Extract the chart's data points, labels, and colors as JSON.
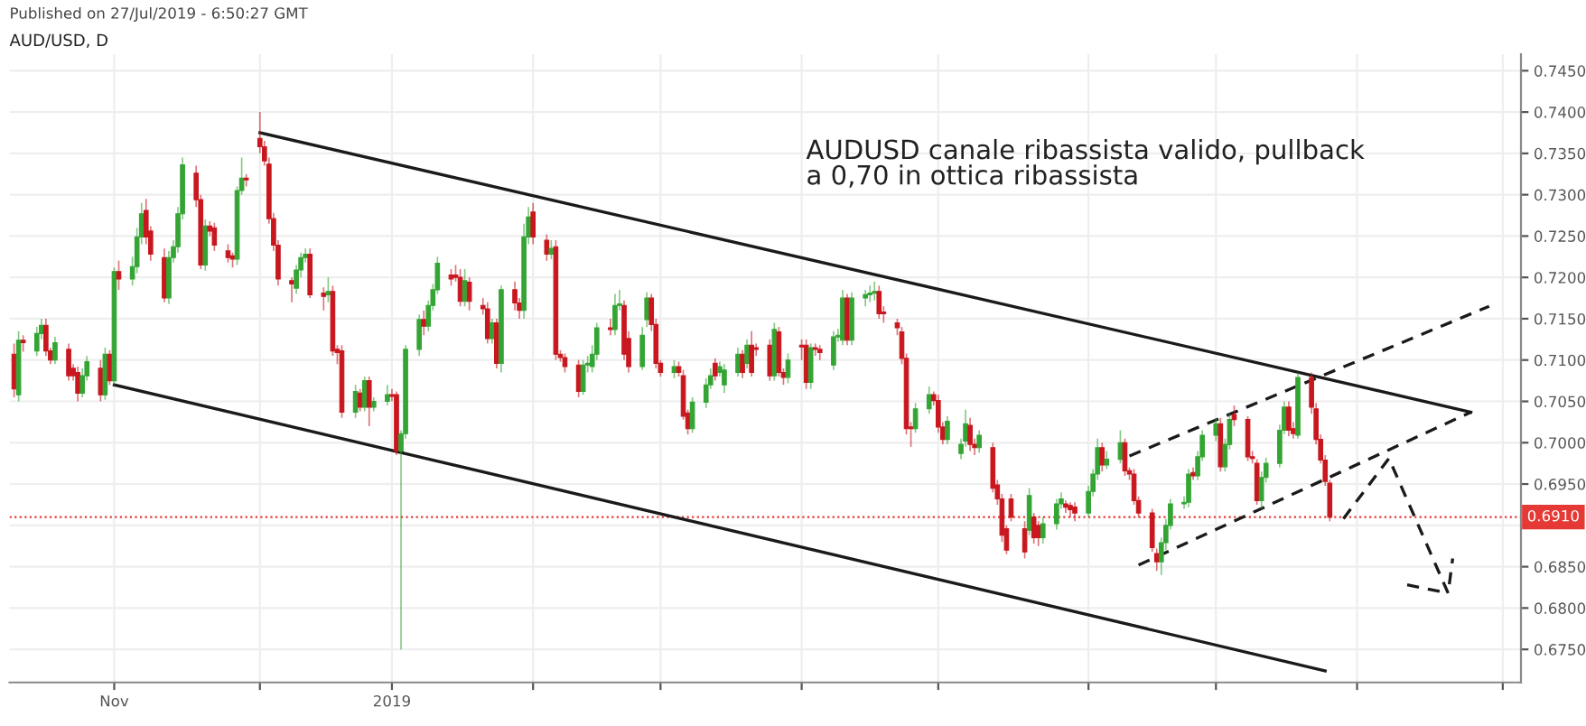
{
  "chart_data": {
    "type": "candlestick",
    "title": "AUD/USD, D",
    "annotations": [
      "Published on 27/Jul/2019 - 6:50:27 GMT",
      "AUDUSD canale ribassista valido, pullback\na 0,70 in ottica ribassista"
    ],
    "x": [
      "2018-10-10",
      "2018-10-11",
      "2018-10-12",
      "2018-10-15",
      "2018-10-16",
      "2018-10-17",
      "2018-10-18",
      "2018-10-19",
      "2018-10-22",
      "2018-10-23",
      "2018-10-24",
      "2018-10-25",
      "2018-10-26",
      "2018-10-29",
      "2018-10-30",
      "2018-10-31",
      "2018-11-01",
      "2018-11-02",
      "2018-11-05",
      "2018-11-06",
      "2018-11-07",
      "2018-11-08",
      "2018-11-09",
      "2018-11-12",
      "2018-11-13",
      "2018-11-14",
      "2018-11-15",
      "2018-11-16",
      "2018-11-19",
      "2018-11-20",
      "2018-11-21",
      "2018-11-22",
      "2018-11-23",
      "2018-11-26",
      "2018-11-27",
      "2018-11-28",
      "2018-11-29",
      "2018-11-30",
      "2018-12-03",
      "2018-12-04",
      "2018-12-05",
      "2018-12-06",
      "2018-12-07",
      "2018-12-10",
      "2018-12-11",
      "2018-12-12",
      "2018-12-13",
      "2018-12-14",
      "2018-12-17",
      "2018-12-18",
      "2018-12-19",
      "2018-12-20",
      "2018-12-21",
      "2018-12-24",
      "2018-12-25",
      "2018-12-26",
      "2018-12-27",
      "2018-12-28",
      "2018-12-31",
      "2019-01-01",
      "2019-01-02",
      "2019-01-03",
      "2019-01-04",
      "2019-01-07",
      "2019-01-08",
      "2019-01-09",
      "2019-01-10",
      "2019-01-11",
      "2019-01-14",
      "2019-01-15",
      "2019-01-16",
      "2019-01-17",
      "2019-01-18",
      "2019-01-21",
      "2019-01-22",
      "2019-01-23",
      "2019-01-24",
      "2019-01-25",
      "2019-01-28",
      "2019-01-29",
      "2019-01-30",
      "2019-01-31",
      "2019-02-01",
      "2019-02-04",
      "2019-02-05",
      "2019-02-06",
      "2019-02-07",
      "2019-02-08",
      "2019-02-11",
      "2019-02-12",
      "2019-02-13",
      "2019-02-14",
      "2019-02-15",
      "2019-02-18",
      "2019-02-19",
      "2019-02-20",
      "2019-02-21",
      "2019-02-22",
      "2019-02-25",
      "2019-02-26",
      "2019-02-27",
      "2019-02-28",
      "2019-03-01",
      "2019-03-04",
      "2019-03-05",
      "2019-03-06",
      "2019-03-07",
      "2019-03-08",
      "2019-03-11",
      "2019-03-12",
      "2019-03-13",
      "2019-03-14",
      "2019-03-15",
      "2019-03-18",
      "2019-03-19",
      "2019-03-20",
      "2019-03-21",
      "2019-03-22",
      "2019-03-25",
      "2019-03-26",
      "2019-03-27",
      "2019-03-28",
      "2019-03-29",
      "2019-04-01",
      "2019-04-02",
      "2019-04-03",
      "2019-04-04",
      "2019-04-05",
      "2019-04-08",
      "2019-04-09",
      "2019-04-10",
      "2019-04-11",
      "2019-04-12",
      "2019-04-15",
      "2019-04-16",
      "2019-04-17",
      "2019-04-18",
      "2019-04-19",
      "2019-04-22",
      "2019-04-23",
      "2019-04-24",
      "2019-04-25",
      "2019-04-26",
      "2019-04-29",
      "2019-04-30",
      "2019-05-01",
      "2019-05-02",
      "2019-05-03",
      "2019-05-06",
      "2019-05-07",
      "2019-05-08",
      "2019-05-09",
      "2019-05-10",
      "2019-05-13",
      "2019-05-14",
      "2019-05-15",
      "2019-05-16",
      "2019-05-17",
      "2019-05-20",
      "2019-05-21",
      "2019-05-22",
      "2019-05-23",
      "2019-05-24",
      "2019-05-27",
      "2019-05-28",
      "2019-05-29",
      "2019-05-30",
      "2019-05-31",
      "2019-06-03",
      "2019-06-04",
      "2019-06-05",
      "2019-06-06",
      "2019-06-07",
      "2019-06-10",
      "2019-06-11",
      "2019-06-12",
      "2019-06-13",
      "2019-06-14",
      "2019-06-17",
      "2019-06-18",
      "2019-06-19",
      "2019-06-20",
      "2019-06-21",
      "2019-06-24",
      "2019-06-25",
      "2019-06-26",
      "2019-06-27",
      "2019-06-28",
      "2019-07-01",
      "2019-07-02",
      "2019-07-03",
      "2019-07-04",
      "2019-07-05",
      "2019-07-08",
      "2019-07-09",
      "2019-07-10",
      "2019-07-11",
      "2019-07-12",
      "2019-07-15",
      "2019-07-16",
      "2019-07-17",
      "2019-07-18",
      "2019-07-19",
      "2019-07-22",
      "2019-07-23",
      "2019-07-24",
      "2019-07-25",
      "2019-07-26"
    ],
    "ohlc": [
      [
        0.7107,
        0.712,
        0.7055,
        0.7065
      ],
      [
        0.7058,
        0.7135,
        0.705,
        0.7124
      ],
      [
        0.7124,
        0.713,
        0.711,
        0.7121
      ],
      [
        0.7111,
        0.714,
        0.7105,
        0.7132
      ],
      [
        0.7132,
        0.715,
        0.7125,
        0.7142
      ],
      [
        0.7142,
        0.715,
        0.7105,
        0.7111
      ],
      [
        0.7111,
        0.7115,
        0.7095,
        0.71
      ],
      [
        0.71,
        0.7128,
        0.7095,
        0.7121
      ],
      [
        0.7113,
        0.712,
        0.7075,
        0.7081
      ],
      [
        0.709,
        0.7095,
        0.7075,
        0.7081
      ],
      [
        0.7085,
        0.7092,
        0.705,
        0.706
      ],
      [
        0.706,
        0.709,
        0.7055,
        0.7081
      ],
      [
        0.7081,
        0.7105,
        0.7075,
        0.7098
      ],
      [
        0.709,
        0.71,
        0.705,
        0.7058
      ],
      [
        0.7058,
        0.7115,
        0.7052,
        0.7107
      ],
      [
        0.7107,
        0.7112,
        0.707,
        0.7075
      ],
      [
        0.7075,
        0.7212,
        0.707,
        0.7207
      ],
      [
        0.7207,
        0.722,
        0.7185,
        0.7198
      ],
      [
        0.7198,
        0.7225,
        0.719,
        0.7213
      ],
      [
        0.7213,
        0.726,
        0.7205,
        0.7249
      ],
      [
        0.7249,
        0.729,
        0.724,
        0.7277
      ],
      [
        0.7281,
        0.7295,
        0.724,
        0.7249
      ],
      [
        0.7256,
        0.7262,
        0.722,
        0.7228
      ],
      [
        0.7224,
        0.7235,
        0.717,
        0.7175
      ],
      [
        0.7175,
        0.7232,
        0.7168,
        0.7224
      ],
      [
        0.7224,
        0.7245,
        0.7218,
        0.7237
      ],
      [
        0.7237,
        0.7285,
        0.723,
        0.7277
      ],
      [
        0.7277,
        0.7345,
        0.727,
        0.7336
      ],
      [
        0.7326,
        0.7335,
        0.7285,
        0.7294
      ],
      [
        0.7294,
        0.73,
        0.721,
        0.7215
      ],
      [
        0.7215,
        0.727,
        0.7208,
        0.7262
      ],
      [
        0.7262,
        0.7268,
        0.725,
        0.7256
      ],
      [
        0.726,
        0.7266,
        0.7232,
        0.7239
      ],
      [
        0.7232,
        0.724,
        0.7218,
        0.7224
      ],
      [
        0.7226,
        0.723,
        0.7212,
        0.7222
      ],
      [
        0.7222,
        0.731,
        0.7215,
        0.7305
      ],
      [
        0.7305,
        0.7345,
        0.73,
        0.732
      ],
      [
        0.732,
        0.7325,
        0.731,
        0.7318
      ],
      [
        0.7368,
        0.74,
        0.735,
        0.7358
      ],
      [
        0.7358,
        0.7365,
        0.7335,
        0.7341
      ],
      [
        0.7337,
        0.7345,
        0.7265,
        0.7271
      ],
      [
        0.7271,
        0.7278,
        0.7232,
        0.7239
      ],
      [
        0.7239,
        0.7245,
        0.719,
        0.7198
      ],
      [
        0.7196,
        0.72,
        0.717,
        0.7192
      ],
      [
        0.7187,
        0.7215,
        0.718,
        0.7209
      ],
      [
        0.7209,
        0.723,
        0.72,
        0.7224
      ],
      [
        0.7224,
        0.7235,
        0.7218,
        0.7228
      ],
      [
        0.7228,
        0.7235,
        0.7175,
        0.7179
      ],
      [
        0.7181,
        0.7188,
        0.716,
        0.7177
      ],
      [
        0.7179,
        0.72,
        0.717,
        0.7183
      ],
      [
        0.7183,
        0.719,
        0.7105,
        0.7111
      ],
      [
        0.7113,
        0.7118,
        0.7095,
        0.7109
      ],
      [
        0.7111,
        0.7118,
        0.703,
        0.7037
      ],
      [
        0.7037,
        0.707,
        0.703,
        0.7062
      ],
      [
        0.706,
        0.7065,
        0.7038,
        0.7043
      ],
      [
        0.7043,
        0.708,
        0.7038,
        0.7075
      ],
      [
        0.7075,
        0.708,
        0.702,
        0.7043
      ],
      [
        0.7043,
        0.7055,
        0.7038,
        0.705
      ],
      [
        0.705,
        0.707,
        0.7045,
        0.7058
      ],
      [
        0.7058,
        0.7065,
        0.705,
        0.7056
      ],
      [
        0.7058,
        0.7062,
        0.6985,
        0.699
      ],
      [
        0.699,
        0.7015,
        0.675,
        0.7011
      ],
      [
        0.7011,
        0.7118,
        0.7005,
        0.7113
      ],
      [
        0.7113,
        0.7155,
        0.7105,
        0.7149
      ],
      [
        0.7149,
        0.716,
        0.713,
        0.7141
      ],
      [
        0.7141,
        0.7172,
        0.7135,
        0.7166
      ],
      [
        0.7166,
        0.7192,
        0.716,
        0.7185
      ],
      [
        0.7185,
        0.7225,
        0.718,
        0.7217
      ],
      [
        0.7203,
        0.721,
        0.719,
        0.7198
      ],
      [
        0.7203,
        0.7215,
        0.7195,
        0.72
      ],
      [
        0.72,
        0.721,
        0.7165,
        0.7171
      ],
      [
        0.7171,
        0.721,
        0.7165,
        0.7196
      ],
      [
        0.7194,
        0.72,
        0.716,
        0.7171
      ],
      [
        0.7166,
        0.7175,
        0.7155,
        0.7162
      ],
      [
        0.7162,
        0.717,
        0.712,
        0.7126
      ],
      [
        0.7126,
        0.715,
        0.712,
        0.7145
      ],
      [
        0.7145,
        0.715,
        0.709,
        0.7096
      ],
      [
        0.7096,
        0.719,
        0.7085,
        0.7185
      ],
      [
        0.7185,
        0.7195,
        0.716,
        0.7169
      ],
      [
        0.7169,
        0.7175,
        0.715,
        0.716
      ],
      [
        0.716,
        0.7265,
        0.715,
        0.7249
      ],
      [
        0.7249,
        0.7285,
        0.724,
        0.7273
      ],
      [
        0.7279,
        0.729,
        0.724,
        0.7249
      ],
      [
        0.7245,
        0.7252,
        0.722,
        0.7228
      ],
      [
        0.7228,
        0.7245,
        0.7222,
        0.7235
      ],
      [
        0.7237,
        0.7245,
        0.71,
        0.7107
      ],
      [
        0.7107,
        0.7112,
        0.7098,
        0.7103
      ],
      [
        0.7103,
        0.7108,
        0.7085,
        0.7092
      ],
      [
        0.7094,
        0.71,
        0.7055,
        0.7062
      ],
      [
        0.7062,
        0.71,
        0.7058,
        0.7094
      ],
      [
        0.7094,
        0.7105,
        0.7085,
        0.7096
      ],
      [
        0.7092,
        0.7118,
        0.7085,
        0.7107
      ],
      [
        0.7107,
        0.7145,
        0.71,
        0.7139
      ],
      [
        0.7139,
        0.715,
        0.713,
        0.7137
      ],
      [
        0.7137,
        0.718,
        0.713,
        0.7166
      ],
      [
        0.7166,
        0.7185,
        0.716,
        0.7168
      ],
      [
        0.7166,
        0.7172,
        0.71,
        0.7107
      ],
      [
        0.7126,
        0.7135,
        0.7085,
        0.7092
      ],
      [
        0.7092,
        0.714,
        0.7088,
        0.713
      ],
      [
        0.7149,
        0.7182,
        0.714,
        0.7175
      ],
      [
        0.7175,
        0.718,
        0.7135,
        0.7143
      ],
      [
        0.7143,
        0.715,
        0.709,
        0.7096
      ],
      [
        0.7096,
        0.71,
        0.708,
        0.7085
      ],
      [
        0.7085,
        0.71,
        0.7078,
        0.7092
      ],
      [
        0.7092,
        0.7098,
        0.708,
        0.7085
      ],
      [
        0.7081,
        0.7088,
        0.7028,
        0.7032
      ],
      [
        0.7036,
        0.704,
        0.701,
        0.7017
      ],
      [
        0.7017,
        0.7055,
        0.7012,
        0.7049
      ],
      [
        0.7049,
        0.7078,
        0.7042,
        0.707
      ],
      [
        0.707,
        0.709,
        0.7065,
        0.7081
      ],
      [
        0.7096,
        0.7102,
        0.7075,
        0.7081
      ],
      [
        0.7085,
        0.7098,
        0.708,
        0.7092
      ],
      [
        0.707,
        0.7095,
        0.706,
        0.7088
      ],
      [
        0.7085,
        0.7115,
        0.708,
        0.7107
      ],
      [
        0.7107,
        0.7112,
        0.7078,
        0.7085
      ],
      [
        0.7096,
        0.7125,
        0.709,
        0.7118
      ],
      [
        0.7118,
        0.7135,
        0.708,
        0.7085
      ],
      [
        0.7115,
        0.712,
        0.7105,
        0.7113
      ],
      [
        0.7118,
        0.7125,
        0.7075,
        0.7081
      ],
      [
        0.7081,
        0.7145,
        0.7075,
        0.7137
      ],
      [
        0.7134,
        0.714,
        0.708,
        0.7085
      ],
      [
        0.7085,
        0.709,
        0.707,
        0.7079
      ],
      [
        0.7079,
        0.7108,
        0.7072,
        0.71
      ],
      [
        0.7118,
        0.7125,
        0.71,
        0.7116
      ],
      [
        0.7118,
        0.7125,
        0.7065,
        0.7073
      ],
      [
        0.7073,
        0.712,
        0.7065,
        0.7115
      ],
      [
        0.7115,
        0.712,
        0.7105,
        0.7113
      ],
      [
        0.7113,
        0.7118,
        0.71,
        0.7109
      ],
      [
        0.7094,
        0.7135,
        0.7088,
        0.7128
      ],
      [
        0.7128,
        0.7138,
        0.7122,
        0.713
      ],
      [
        0.7124,
        0.7185,
        0.7118,
        0.7175
      ],
      [
        0.7175,
        0.718,
        0.7118,
        0.7124
      ],
      [
        0.7124,
        0.7182,
        0.7118,
        0.7175
      ],
      [
        0.7175,
        0.7185,
        0.7165,
        0.7179
      ],
      [
        0.7179,
        0.719,
        0.717,
        0.7181
      ],
      [
        0.7181,
        0.7195,
        0.7172,
        0.7183
      ],
      [
        0.7183,
        0.719,
        0.715,
        0.7156
      ],
      [
        0.7158,
        0.7165,
        0.7145,
        0.7156
      ],
      [
        0.7145,
        0.715,
        0.713,
        0.7139
      ],
      [
        0.7134,
        0.714,
        0.7095,
        0.7102
      ],
      [
        0.7102,
        0.7108,
        0.701,
        0.7017
      ],
      [
        0.7019,
        0.7025,
        0.6995,
        0.7017
      ],
      [
        0.7017,
        0.7048,
        0.7012,
        0.7041
      ],
      [
        0.7041,
        0.7068,
        0.7035,
        0.7058
      ],
      [
        0.7058,
        0.7062,
        0.7045,
        0.7051
      ],
      [
        0.7051,
        0.7058,
        0.7012,
        0.7019
      ],
      [
        0.7019,
        0.7025,
        0.6998,
        0.7004
      ],
      [
        0.7004,
        0.7032,
        0.6998,
        0.7026
      ],
      [
        0.6987,
        0.7005,
        0.698,
        0.6998
      ],
      [
        0.7002,
        0.704,
        0.6995,
        0.7023
      ],
      [
        0.7021,
        0.703,
        0.699,
        0.6998
      ],
      [
        0.6998,
        0.7005,
        0.6985,
        0.6994
      ],
      [
        0.6994,
        0.7015,
        0.6988,
        0.7009
      ],
      [
        0.6994,
        0.7,
        0.694,
        0.6945
      ],
      [
        0.6949,
        0.6955,
        0.6925,
        0.6932
      ],
      [
        0.6932,
        0.6938,
        0.688,
        0.6888
      ],
      [
        0.6896,
        0.69,
        0.6865,
        0.687
      ],
      [
        0.6932,
        0.6938,
        0.6905,
        0.691
      ],
      [
        0.6896,
        0.6905,
        0.686,
        0.6868
      ],
      [
        0.6894,
        0.6945,
        0.6888,
        0.6936
      ],
      [
        0.691,
        0.6915,
        0.6878,
        0.6885
      ],
      [
        0.69,
        0.6905,
        0.6875,
        0.6885
      ],
      [
        0.6885,
        0.691,
        0.6878,
        0.6902
      ],
      [
        0.6902,
        0.6932,
        0.6895,
        0.6926
      ],
      [
        0.6926,
        0.694,
        0.692,
        0.6932
      ],
      [
        0.6926,
        0.693,
        0.6915,
        0.6922
      ],
      [
        0.6924,
        0.6928,
        0.691,
        0.6919
      ],
      [
        0.6922,
        0.6928,
        0.6905,
        0.6915
      ],
      [
        0.6915,
        0.6948,
        0.691,
        0.6941
      ],
      [
        0.6941,
        0.6968,
        0.6935,
        0.6962
      ],
      [
        0.6962,
        0.7005,
        0.6955,
        0.6994
      ],
      [
        0.6994,
        0.7,
        0.6965,
        0.6973
      ],
      [
        0.6973,
        0.699,
        0.6968,
        0.698
      ],
      [
        0.698,
        0.7015,
        0.6975,
        0.7
      ],
      [
        0.7,
        0.7005,
        0.696,
        0.6966
      ],
      [
        0.6966,
        0.697,
        0.6955,
        0.6962
      ],
      [
        0.6962,
        0.6968,
        0.6925,
        0.693
      ],
      [
        0.693,
        0.6935,
        0.691,
        0.6915
      ],
      [
        0.6915,
        0.692,
        0.6868,
        0.6873
      ],
      [
        0.6866,
        0.6872,
        0.6845,
        0.6856
      ],
      [
        0.6856,
        0.6885,
        0.684,
        0.6879
      ],
      [
        0.6879,
        0.6908,
        0.687,
        0.69
      ],
      [
        0.69,
        0.6932,
        0.6895,
        0.6926
      ],
      [
        0.6926,
        0.6935,
        0.692,
        0.6928
      ],
      [
        0.6928,
        0.6968,
        0.6922,
        0.6962
      ],
      [
        0.6964,
        0.697,
        0.6955,
        0.696
      ],
      [
        0.696,
        0.699,
        0.6955,
        0.6983
      ],
      [
        0.6983,
        0.7015,
        0.6978,
        0.7009
      ],
      [
        0.7009,
        0.703,
        0.7002,
        0.7023
      ],
      [
        0.7023,
        0.703,
        0.6965,
        0.6971
      ],
      [
        0.6971,
        0.7005,
        0.6965,
        0.6998
      ],
      [
        0.6998,
        0.7035,
        0.6992,
        0.7028
      ],
      [
        0.7034,
        0.7045,
        0.702,
        0.7028
      ],
      [
        0.7028,
        0.7032,
        0.6978,
        0.6983
      ],
      [
        0.6983,
        0.699,
        0.6975,
        0.6981
      ],
      [
        0.6975,
        0.698,
        0.6925,
        0.693
      ],
      [
        0.693,
        0.6965,
        0.692,
        0.6958
      ],
      [
        0.6958,
        0.6982,
        0.6952,
        0.6975
      ],
      [
        0.6975,
        0.7022,
        0.697,
        0.7015
      ],
      [
        0.7015,
        0.705,
        0.701,
        0.7043
      ],
      [
        0.7043,
        0.705,
        0.7008,
        0.7015
      ],
      [
        0.7017,
        0.7025,
        0.7005,
        0.7011
      ],
      [
        0.7009,
        0.7085,
        0.7005,
        0.7079
      ],
      [
        0.7079,
        0.7085,
        0.7035,
        0.7043
      ],
      [
        0.7041,
        0.7048,
        0.6998,
        0.7004
      ],
      [
        0.7004,
        0.701,
        0.6975,
        0.6979
      ],
      [
        0.6979,
        0.6985,
        0.6948,
        0.6953
      ],
      [
        0.6951,
        0.6955,
        0.6905,
        0.691
      ]
    ],
    "colors": [
      "#c8171e",
      "#34a534",
      "#c8171e",
      "#34a534",
      "#34a534",
      "#c8171e",
      "#c8171e",
      "#34a534",
      "#c8171e",
      "#c8171e",
      "#c8171e",
      "#34a534",
      "#34a534",
      "#c8171e",
      "#34a534",
      "#c8171e",
      "#34a534",
      "#c8171e",
      "#34a534",
      "#34a534",
      "#34a534",
      "#c8171e",
      "#c8171e",
      "#c8171e",
      "#34a534",
      "#34a534",
      "#34a534",
      "#34a534",
      "#c8171e",
      "#c8171e",
      "#34a534",
      "#c8171e",
      "#c8171e",
      "#c8171e",
      "#c8171e",
      "#34a534",
      "#34a534",
      "#c8171e",
      "#c8171e",
      "#c8171e",
      "#c8171e",
      "#c8171e",
      "#c8171e",
      "#c8171e",
      "#34a534",
      "#34a534",
      "#34a534",
      "#c8171e",
      "#c8171e",
      "#34a534",
      "#c8171e",
      "#c8171e",
      "#c8171e",
      "#34a534",
      "#c8171e",
      "#34a534",
      "#c8171e",
      "#34a534",
      "#34a534",
      "#c8171e",
      "#c8171e",
      "#34a534",
      "#34a534",
      "#34a534",
      "#c8171e",
      "#34a534",
      "#34a534",
      "#34a534",
      "#c8171e",
      "#c8171e",
      "#c8171e",
      "#34a534",
      "#c8171e",
      "#c8171e",
      "#c8171e",
      "#34a534",
      "#c8171e",
      "#34a534",
      "#c8171e",
      "#c8171e",
      "#34a534",
      "#34a534",
      "#c8171e",
      "#c8171e",
      "#34a534",
      "#c8171e",
      "#c8171e",
      "#c8171e",
      "#c8171e",
      "#34a534",
      "#34a534",
      "#34a534",
      "#34a534",
      "#c8171e",
      "#34a534",
      "#34a534",
      "#c8171e",
      "#c8171e",
      "#34a534",
      "#34a534",
      "#c8171e",
      "#c8171e",
      "#c8171e",
      "#34a534",
      "#c8171e",
      "#c8171e",
      "#c8171e",
      "#34a534",
      "#34a534",
      "#34a534",
      "#c8171e",
      "#34a534",
      "#34a534",
      "#34a534",
      "#c8171e",
      "#34a534",
      "#c8171e",
      "#c8171e",
      "#c8171e",
      "#34a534",
      "#c8171e",
      "#c8171e",
      "#34a534",
      "#c8171e",
      "#c8171e",
      "#34a534",
      "#c8171e",
      "#c8171e",
      "#34a534",
      "#34a534",
      "#34a534",
      "#c8171e",
      "#34a534",
      "#34a534",
      "#34a534",
      "#34a534",
      "#c8171e",
      "#c8171e",
      "#c8171e",
      "#c8171e",
      "#c8171e",
      "#c8171e",
      "#34a534",
      "#34a534",
      "#c8171e",
      "#c8171e",
      "#c8171e",
      "#34a534",
      "#34a534",
      "#34a534",
      "#c8171e",
      "#c8171e",
      "#34a534",
      "#c8171e",
      "#c8171e",
      "#c8171e",
      "#c8171e",
      "#c8171e",
      "#c8171e",
      "#34a534",
      "#c8171e",
      "#c8171e",
      "#34a534",
      "#34a534",
      "#34a534",
      "#c8171e",
      "#c8171e",
      "#c8171e",
      "#34a534",
      "#34a534",
      "#34a534",
      "#c8171e",
      "#34a534",
      "#34a534",
      "#c8171e",
      "#c8171e",
      "#c8171e",
      "#c8171e",
      "#c8171e",
      "#c8171e",
      "#34a534",
      "#34a534",
      "#34a534",
      "#34a534",
      "#34a534",
      "#c8171e",
      "#34a534",
      "#34a534",
      "#34a534",
      "#c8171e",
      "#34a534",
      "#34a534",
      "#c8171e",
      "#c8171e",
      "#c8171e",
      "#c8171e",
      "#34a534",
      "#34a534",
      "#34a534",
      "#34a534",
      "#c8171e",
      "#c8171e",
      "#34a534",
      "#c8171e",
      "#c8171e",
      "#c8171e",
      "#c8171e",
      "#c8171e"
    ],
    "series": [
      {
        "type": "line",
        "color": "#1a1a1a",
        "line_style": "solid",
        "x": [
          "2018-12-03",
          "2019-08-26"
        ],
        "values": [
          0.7375,
          0.7037
        ]
      },
      {
        "type": "line",
        "color": "#1a1a1a",
        "line_style": "solid",
        "x": [
          "2018-11-01",
          "2019-07-25"
        ],
        "values": [
          0.707,
          0.6724
        ]
      },
      {
        "type": "line",
        "color": "#1a1a1a",
        "line_style": "dashed",
        "x": [
          "2019-06-12",
          "2019-08-30"
        ],
        "values": [
          0.6984,
          0.7165
        ]
      },
      {
        "type": "line",
        "color": "#1a1a1a",
        "line_style": "dashed",
        "x": [
          "2019-06-14",
          "2019-08-26"
        ],
        "values": [
          0.6852,
          0.7037
        ]
      },
      {
        "type": "line",
        "color": "#1a1a1a",
        "line_style": "dashed",
        "x": [
          "2019-07-29",
          "2019-08-08",
          "2019-08-21",
          "2019-08-22"
        ],
        "values": [
          0.6908,
          0.6981,
          0.6818,
          0.686
        ]
      },
      {
        "type": "line",
        "color": "#1a1a1a",
        "line_style": "dashed",
        "x": [
          "2019-08-12",
          "2019-08-21"
        ],
        "values": [
          0.6828,
          0.6818
        ]
      }
    ],
    "ref_lines": [
      {
        "axis": "y",
        "value": 0.691,
        "label": "0.6910",
        "color": "#e53935",
        "line_style": "dotted"
      }
    ],
    "xlim": [
      "2018-10-09",
      "2019-09-06"
    ],
    "xticks": [
      {
        "value": "2018-11-01",
        "label": "Nov"
      },
      {
        "value": "2018-12-03",
        "label": null
      },
      {
        "value": "2019-01-01",
        "label": "2019"
      },
      {
        "value": "2019-02-01",
        "label": null
      },
      {
        "value": "2019-03-01",
        "label": null
      },
      {
        "value": "2019-04-01",
        "label": null
      },
      {
        "value": "2019-05-01",
        "label": null
      },
      {
        "value": "2019-06-03",
        "label": null
      },
      {
        "value": "2019-07-01",
        "label": null
      },
      {
        "value": "2019-08-01",
        "label": null
      },
      {
        "value": "2019-09-02",
        "label": null
      }
    ],
    "ylim": [
      0.671,
      0.747
    ],
    "yticks": [
      {
        "value": 0.675,
        "label": "0.6750"
      },
      {
        "value": 0.68,
        "label": "0.6800"
      },
      {
        "value": 0.685,
        "label": "0.6850"
      },
      {
        "value": 0.69,
        "label": null
      },
      {
        "value": 0.695,
        "label": "0.6950"
      },
      {
        "value": 0.7,
        "label": "0.7000"
      },
      {
        "value": 0.705,
        "label": "0.7050"
      },
      {
        "value": 0.71,
        "label": "0.7100"
      },
      {
        "value": 0.715,
        "label": "0.7150"
      },
      {
        "value": 0.72,
        "label": "0.7200"
      },
      {
        "value": 0.725,
        "label": "0.7250"
      },
      {
        "value": 0.73,
        "label": "0.7300"
      },
      {
        "value": 0.735,
        "label": "0.7350"
      },
      {
        "value": 0.74,
        "label": "0.7400"
      },
      {
        "value": 0.745,
        "label": "0.7450"
      }
    ],
    "grid": true
  }
}
